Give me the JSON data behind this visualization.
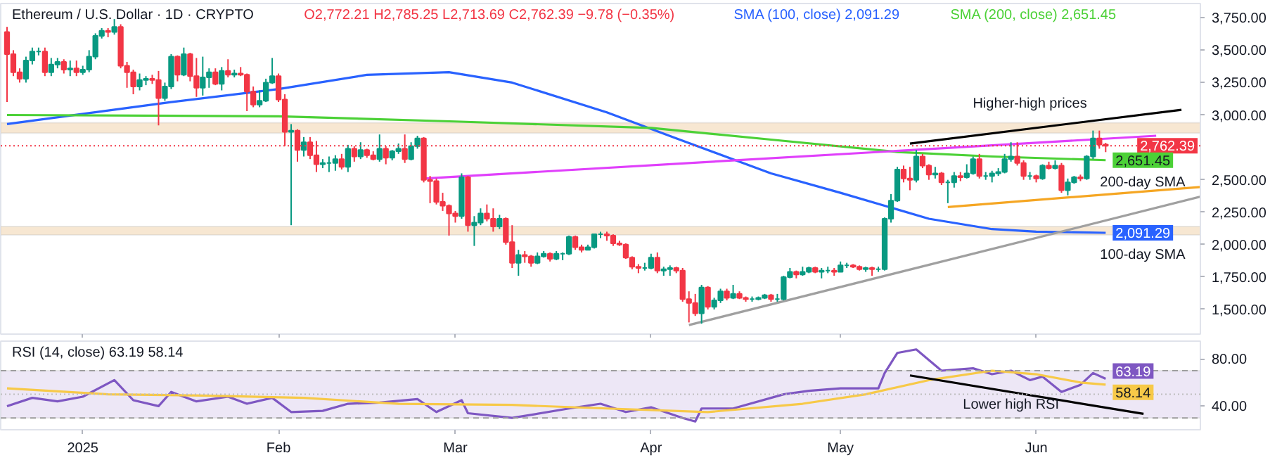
{
  "chart_data": [
    {
      "type": "candlestick",
      "title": "Ethereum / U.S. Dollar · 1D · CRYPTO",
      "subtitle": "O2,772.21 H2,785.25 L2,713.69 C2,762.39 −9.78 (−0.35%)",
      "x": [
        "2024-12-20",
        "2024-12-21",
        "2024-12-22",
        "2024-12-23",
        "2024-12-24",
        "2024-12-25",
        "2024-12-26",
        "2024-12-27",
        "2024-12-28",
        "2024-12-29",
        "2024-12-30",
        "2024-12-31",
        "2025-01-01",
        "2025-01-02",
        "2025-01-03",
        "2025-01-04",
        "2025-01-05",
        "2025-01-06",
        "2025-01-07",
        "2025-01-08",
        "2025-01-09",
        "2025-01-10",
        "2025-01-11",
        "2025-01-12",
        "2025-01-13",
        "2025-01-14",
        "2025-01-15",
        "2025-01-16",
        "2025-01-17",
        "2025-01-18",
        "2025-01-19",
        "2025-01-20",
        "2025-01-21",
        "2025-01-22",
        "2025-01-23",
        "2025-01-24",
        "2025-01-25",
        "2025-01-26",
        "2025-01-27",
        "2025-01-28",
        "2025-01-29",
        "2025-01-30",
        "2025-01-31",
        "2025-02-01",
        "2025-02-02",
        "2025-02-03",
        "2025-02-04",
        "2025-02-05",
        "2025-02-06",
        "2025-02-07",
        "2025-02-08",
        "2025-02-09",
        "2025-02-10",
        "2025-02-11",
        "2025-02-12",
        "2025-02-13",
        "2025-02-14",
        "2025-02-15",
        "2025-02-16",
        "2025-02-17",
        "2025-02-18",
        "2025-02-19",
        "2025-02-20",
        "2025-02-21",
        "2025-02-22",
        "2025-02-23",
        "2025-02-24",
        "2025-02-25",
        "2025-02-26",
        "2025-02-27",
        "2025-02-28",
        "2025-03-01",
        "2025-03-02",
        "2025-03-03",
        "2025-03-04",
        "2025-03-05",
        "2025-03-06",
        "2025-03-07",
        "2025-03-08",
        "2025-03-09",
        "2025-03-10",
        "2025-03-11",
        "2025-03-12",
        "2025-03-13",
        "2025-03-14",
        "2025-03-15",
        "2025-03-16",
        "2025-03-17",
        "2025-03-18",
        "2025-03-19",
        "2025-03-20",
        "2025-03-21",
        "2025-03-22",
        "2025-03-23",
        "2025-03-24",
        "2025-03-25",
        "2025-03-26",
        "2025-03-27",
        "2025-03-28",
        "2025-03-29",
        "2025-03-30",
        "2025-03-31",
        "2025-04-01",
        "2025-04-02",
        "2025-04-03",
        "2025-04-04",
        "2025-04-05",
        "2025-04-06",
        "2025-04-07",
        "2025-04-08",
        "2025-04-09",
        "2025-04-10",
        "2025-04-11",
        "2025-04-12",
        "2025-04-13",
        "2025-04-14",
        "2025-04-15",
        "2025-04-16",
        "2025-04-17",
        "2025-04-18",
        "2025-04-19",
        "2025-04-20",
        "2025-04-21",
        "2025-04-22",
        "2025-04-23",
        "2025-04-24",
        "2025-04-25",
        "2025-04-26",
        "2025-04-27",
        "2025-04-28",
        "2025-04-29",
        "2025-04-30",
        "2025-05-01",
        "2025-05-02",
        "2025-05-03",
        "2025-05-04",
        "2025-05-05",
        "2025-05-06",
        "2025-05-07",
        "2025-05-08",
        "2025-05-09",
        "2025-05-10",
        "2025-05-11",
        "2025-05-12",
        "2025-05-13",
        "2025-05-14",
        "2025-05-15",
        "2025-05-16",
        "2025-05-17",
        "2025-05-18",
        "2025-05-19",
        "2025-05-20",
        "2025-05-21",
        "2025-05-22",
        "2025-05-23",
        "2025-05-24",
        "2025-05-25",
        "2025-05-26",
        "2025-05-27",
        "2025-05-28",
        "2025-05-29",
        "2025-05-30",
        "2025-05-31",
        "2025-06-01",
        "2025-06-02",
        "2025-06-03",
        "2025-06-04",
        "2025-06-05",
        "2025-06-06",
        "2025-06-07",
        "2025-06-08",
        "2025-06-09",
        "2025-06-10",
        "2025-06-11",
        "2025-06-12"
      ],
      "ohlc": [
        [
          3640,
          3680,
          3100,
          3470
        ],
        [
          3470,
          3500,
          3300,
          3330
        ],
        [
          3330,
          3360,
          3250,
          3280
        ],
        [
          3280,
          3450,
          3250,
          3420
        ],
        [
          3420,
          3520,
          3390,
          3490
        ],
        [
          3490,
          3520,
          3460,
          3490
        ],
        [
          3490,
          3520,
          3300,
          3330
        ],
        [
          3330,
          3440,
          3300,
          3390
        ],
        [
          3390,
          3440,
          3360,
          3410
        ],
        [
          3410,
          3430,
          3320,
          3350
        ],
        [
          3350,
          3420,
          3300,
          3360
        ],
        [
          3360,
          3420,
          3300,
          3330
        ],
        [
          3330,
          3380,
          3310,
          3350
        ],
        [
          3350,
          3500,
          3330,
          3450
        ],
        [
          3450,
          3630,
          3430,
          3610
        ],
        [
          3610,
          3670,
          3590,
          3650
        ],
        [
          3650,
          3670,
          3600,
          3640
        ],
        [
          3640,
          3740,
          3620,
          3680
        ],
        [
          3680,
          3700,
          3360,
          3380
        ],
        [
          3380,
          3410,
          3210,
          3330
        ],
        [
          3330,
          3350,
          3160,
          3220
        ],
        [
          3220,
          3320,
          3190,
          3270
        ],
        [
          3270,
          3300,
          3230,
          3280
        ],
        [
          3280,
          3310,
          3240,
          3270
        ],
        [
          3270,
          3340,
          2920,
          3130
        ],
        [
          3130,
          3250,
          3110,
          3220
        ],
        [
          3220,
          3470,
          3200,
          3450
        ],
        [
          3450,
          3460,
          3260,
          3310
        ],
        [
          3310,
          3520,
          3300,
          3470
        ],
        [
          3470,
          3480,
          3260,
          3300
        ],
        [
          3300,
          3440,
          3140,
          3210
        ],
        [
          3210,
          3450,
          3150,
          3290
        ],
        [
          3290,
          3360,
          3210,
          3330
        ],
        [
          3330,
          3360,
          3230,
          3240
        ],
        [
          3240,
          3370,
          3190,
          3340
        ],
        [
          3340,
          3430,
          3290,
          3310
        ],
        [
          3310,
          3350,
          3290,
          3320
        ],
        [
          3320,
          3370,
          3300,
          3310
        ],
        [
          3310,
          3320,
          3030,
          3180
        ],
        [
          3180,
          3220,
          3060,
          3080
        ],
        [
          3080,
          3190,
          3060,
          3110
        ],
        [
          3110,
          3280,
          3100,
          3250
        ],
        [
          3250,
          3440,
          3240,
          3300
        ],
        [
          3300,
          3320,
          3100,
          3120
        ],
        [
          3120,
          3160,
          2760,
          2870
        ],
        [
          2870,
          2930,
          2150,
          2880
        ],
        [
          2880,
          2890,
          2640,
          2730
        ],
        [
          2730,
          2830,
          2680,
          2790
        ],
        [
          2790,
          2830,
          2660,
          2690
        ],
        [
          2690,
          2800,
          2560,
          2620
        ],
        [
          2620,
          2660,
          2590,
          2630
        ],
        [
          2630,
          2680,
          2560,
          2630
        ],
        [
          2630,
          2690,
          2570,
          2660
        ],
        [
          2660,
          2700,
          2580,
          2600
        ],
        [
          2600,
          2770,
          2560,
          2740
        ],
        [
          2740,
          2760,
          2640,
          2680
        ],
        [
          2680,
          2790,
          2660,
          2730
        ],
        [
          2730,
          2740,
          2670,
          2690
        ],
        [
          2690,
          2720,
          2650,
          2660
        ],
        [
          2660,
          2850,
          2640,
          2740
        ],
        [
          2740,
          2760,
          2620,
          2670
        ],
        [
          2670,
          2730,
          2650,
          2720
        ],
        [
          2720,
          2780,
          2700,
          2740
        ],
        [
          2740,
          2850,
          2630,
          2660
        ],
        [
          2660,
          2790,
          2650,
          2760
        ],
        [
          2760,
          2840,
          2740,
          2820
        ],
        [
          2820,
          2830,
          2480,
          2500
        ],
        [
          2500,
          2530,
          2320,
          2490
        ],
        [
          2490,
          2510,
          2310,
          2330
        ],
        [
          2330,
          2400,
          2260,
          2300
        ],
        [
          2300,
          2310,
          2070,
          2240
        ],
        [
          2240,
          2260,
          2170,
          2220
        ],
        [
          2220,
          2550,
          2200,
          2520
        ],
        [
          2520,
          2530,
          2100,
          2150
        ],
        [
          2150,
          2220,
          1990,
          2170
        ],
        [
          2170,
          2280,
          2150,
          2240
        ],
        [
          2240,
          2310,
          2180,
          2200
        ],
        [
          2200,
          2280,
          2100,
          2140
        ],
        [
          2140,
          2230,
          2120,
          2200
        ],
        [
          2200,
          2210,
          2000,
          2020
        ],
        [
          2020,
          2150,
          1820,
          1860
        ],
        [
          1860,
          1960,
          1760,
          1920
        ],
        [
          1920,
          1950,
          1860,
          1910
        ],
        [
          1910,
          1920,
          1830,
          1860
        ],
        [
          1860,
          1940,
          1850,
          1910
        ],
        [
          1910,
          1950,
          1900,
          1930
        ],
        [
          1930,
          1940,
          1870,
          1890
        ],
        [
          1890,
          1950,
          1880,
          1930
        ],
        [
          1930,
          1940,
          1880,
          1930
        ],
        [
          1930,
          2070,
          1920,
          2060
        ],
        [
          2060,
          2070,
          1960,
          1980
        ],
        [
          1980,
          2000,
          1940,
          1960
        ],
        [
          1960,
          2000,
          1960,
          1980
        ],
        [
          1980,
          2080,
          1970,
          2080
        ],
        [
          2080,
          2100,
          2050,
          2080
        ],
        [
          2080,
          2100,
          2030,
          2070
        ],
        [
          2070,
          2080,
          1990,
          2010
        ],
        [
          2010,
          2030,
          1990,
          2000
        ],
        [
          2000,
          2010,
          1890,
          1900
        ],
        [
          1900,
          1910,
          1810,
          1830
        ],
        [
          1830,
          1850,
          1780,
          1820
        ],
        [
          1820,
          1860,
          1800,
          1820
        ],
        [
          1820,
          1930,
          1810,
          1900
        ],
        [
          1900,
          1940,
          1780,
          1800
        ],
        [
          1800,
          1830,
          1760,
          1810
        ],
        [
          1810,
          1840,
          1760,
          1820
        ],
        [
          1820,
          1830,
          1780,
          1800
        ],
        [
          1800,
          1820,
          1560,
          1580
        ],
        [
          1580,
          1640,
          1400,
          1550
        ],
        [
          1550,
          1620,
          1450,
          1470
        ],
        [
          1470,
          1690,
          1390,
          1670
        ],
        [
          1670,
          1680,
          1500,
          1520
        ],
        [
          1520,
          1590,
          1500,
          1570
        ],
        [
          1570,
          1660,
          1550,
          1640
        ],
        [
          1640,
          1660,
          1570,
          1590
        ],
        [
          1590,
          1690,
          1580,
          1620
        ],
        [
          1620,
          1640,
          1580,
          1590
        ],
        [
          1590,
          1600,
          1560,
          1580
        ],
        [
          1580,
          1600,
          1560,
          1580
        ],
        [
          1580,
          1600,
          1570,
          1590
        ],
        [
          1590,
          1620,
          1580,
          1610
        ],
        [
          1610,
          1620,
          1560,
          1580
        ],
        [
          1580,
          1620,
          1560,
          1580
        ],
        [
          1580,
          1760,
          1570,
          1750
        ],
        [
          1750,
          1820,
          1740,
          1790
        ],
        [
          1790,
          1800,
          1740,
          1770
        ],
        [
          1770,
          1830,
          1760,
          1790
        ],
        [
          1790,
          1830,
          1780,
          1820
        ],
        [
          1820,
          1830,
          1780,
          1790
        ],
        [
          1790,
          1820,
          1740,
          1800
        ],
        [
          1800,
          1830,
          1780,
          1800
        ],
        [
          1800,
          1820,
          1760,
          1790
        ],
        [
          1790,
          1870,
          1790,
          1840
        ],
        [
          1840,
          1860,
          1820,
          1840
        ],
        [
          1840,
          1850,
          1820,
          1830
        ],
        [
          1830,
          1840,
          1800,
          1810
        ],
        [
          1810,
          1830,
          1790,
          1820
        ],
        [
          1820,
          1830,
          1760,
          1810
        ],
        [
          1810,
          1830,
          1790,
          1810
        ],
        [
          1810,
          2210,
          1800,
          2200
        ],
        [
          2200,
          2390,
          2170,
          2340
        ],
        [
          2340,
          2600,
          2330,
          2580
        ],
        [
          2580,
          2610,
          2480,
          2510
        ],
        [
          2510,
          2600,
          2420,
          2500
        ],
        [
          2500,
          2730,
          2480,
          2680
        ],
        [
          2680,
          2700,
          2590,
          2610
        ],
        [
          2610,
          2620,
          2500,
          2540
        ],
        [
          2540,
          2600,
          2510,
          2550
        ],
        [
          2550,
          2560,
          2460,
          2480
        ],
        [
          2480,
          2500,
          2320,
          2480
        ],
        [
          2480,
          2560,
          2440,
          2530
        ],
        [
          2530,
          2560,
          2490,
          2520
        ],
        [
          2520,
          2620,
          2510,
          2550
        ],
        [
          2550,
          2680,
          2540,
          2660
        ],
        [
          2660,
          2700,
          2510,
          2530
        ],
        [
          2530,
          2560,
          2500,
          2530
        ],
        [
          2530,
          2570,
          2480,
          2550
        ],
        [
          2550,
          2590,
          2530,
          2560
        ],
        [
          2560,
          2700,
          2550,
          2660
        ],
        [
          2660,
          2790,
          2640,
          2680
        ],
        [
          2680,
          2790,
          2610,
          2630
        ],
        [
          2630,
          2650,
          2500,
          2530
        ],
        [
          2530,
          2560,
          2500,
          2530
        ],
        [
          2530,
          2540,
          2480,
          2510
        ],
        [
          2510,
          2620,
          2500,
          2610
        ],
        [
          2610,
          2640,
          2580,
          2590
        ],
        [
          2590,
          2650,
          2580,
          2610
        ],
        [
          2610,
          2630,
          2400,
          2420
        ],
        [
          2420,
          2510,
          2380,
          2480
        ],
        [
          2480,
          2530,
          2470,
          2520
        ],
        [
          2520,
          2540,
          2490,
          2510
        ],
        [
          2510,
          2690,
          2500,
          2680
        ],
        [
          2680,
          2880,
          2660,
          2820
        ],
        [
          2820,
          2880,
          2740,
          2772.21
        ],
        [
          2772.21,
          2785.25,
          2713.69,
          2762.39
        ]
      ],
      "series": [
        {
          "type": "line",
          "name": "SMA (100, close) 2,091.29",
          "color": "#2962ff",
          "x": [
            "2024-12-20",
            "2025-01-15",
            "2025-02-01",
            "2025-02-15",
            "2025-02-28",
            "2025-03-10",
            "2025-03-25",
            "2025-04-05",
            "2025-04-20",
            "2025-05-01",
            "2025-05-15",
            "2025-05-25",
            "2025-06-01",
            "2025-06-12"
          ],
          "values": [
            2930,
            3100,
            3200,
            3310,
            3330,
            3250,
            3020,
            2820,
            2550,
            2400,
            2200,
            2120,
            2100,
            2091.29
          ],
          "value_labels": [
            null,
            null,
            null,
            null,
            null,
            null,
            null,
            null,
            null,
            null,
            null,
            null,
            null,
            "2,091.29"
          ]
        },
        {
          "type": "line",
          "name": "SMA (200, close) 2,651.45",
          "color": "#4cd137",
          "x": [
            "2024-12-20",
            "2025-02-01",
            "2025-03-01",
            "2025-04-01",
            "2025-04-20",
            "2025-05-10",
            "2025-05-25",
            "2025-06-12"
          ],
          "values": [
            3000,
            2990,
            2950,
            2900,
            2810,
            2715,
            2680,
            2651.45
          ],
          "value_labels": [
            null,
            null,
            null,
            null,
            null,
            null,
            null,
            "2,651.45"
          ]
        },
        {
          "type": "line",
          "color": "#e040fb",
          "x": [
            "2025-02-24",
            "2025-06-20"
          ],
          "values": [
            2510,
            2840
          ]
        },
        {
          "type": "line",
          "color": "#f5a623",
          "x": [
            "2025-05-18",
            "2025-06-27"
          ],
          "values": [
            2290,
            2445
          ]
        },
        {
          "type": "line",
          "color": "#a0a0a0",
          "x": [
            "2025-04-07",
            "2025-06-27"
          ],
          "values": [
            1380,
            2370
          ]
        },
        {
          "type": "line",
          "color": "#000000",
          "x": [
            "2025-05-12",
            "2025-06-24"
          ],
          "values": [
            2780,
            3040
          ]
        }
      ],
      "bands": [
        {
          "axis": "y",
          "from": 2860,
          "to": 2940,
          "color": "#f7e7d2"
        },
        {
          "axis": "y",
          "from": 2075,
          "to": 2140,
          "color": "#f7e7d2"
        }
      ],
      "ref_lines": [
        {
          "axis": "y",
          "value": 2762.39,
          "label": "2,762.39",
          "color": "#f23645",
          "line_style": "dotted"
        }
      ],
      "annotations": [
        {
          "text": "Higher-high prices",
          "x": "2025-05-31",
          "y": 2895
        },
        {
          "text": "200-day SMA",
          "x": "2025-06-12",
          "y": 2651.45
        },
        {
          "text": "100-day SMA",
          "x": "2025-06-12",
          "y": 2091.29
        }
      ],
      "xlim": [
        "2024-12-19",
        "2025-06-27"
      ],
      "ylim": [
        1310,
        3860
      ],
      "xticks": [
        {
          "value": "2025-01-01",
          "label": null
        },
        {
          "value": "2025-02-01",
          "label": null
        },
        {
          "value": "2025-03-01",
          "label": null
        },
        {
          "value": "2025-04-01",
          "label": null
        },
        {
          "value": "2025-05-01",
          "label": null
        },
        {
          "value": "2025-06-01",
          "label": null
        }
      ],
      "yticks": [
        {
          "value": 1500,
          "label": "1,500.00"
        },
        {
          "value": 1750,
          "label": "1,750.00"
        },
        {
          "value": 2000,
          "label": "2,000.00"
        },
        {
          "value": 2250,
          "label": "2,250.00"
        },
        {
          "value": 2500,
          "label": "2,500.00"
        },
        {
          "value": 3000,
          "label": "3,000.00"
        },
        {
          "value": 3250,
          "label": "3,250.00"
        },
        {
          "value": 3500,
          "label": "3,500.00"
        },
        {
          "value": 3750,
          "label": "3,750.00"
        }
      ],
      "tick_labels": "y",
      "legend": "top"
    },
    {
      "type": "line",
      "title": "RSI (14, close) 63.19 58.14",
      "series": [
        {
          "color": "#7e57c2",
          "x": [
            "2024-12-20",
            "2024-12-24",
            "2024-12-28",
            "2025-01-01",
            "2025-01-06",
            "2025-01-09",
            "2025-01-13",
            "2025-01-15",
            "2025-01-19",
            "2025-01-24",
            "2025-01-27",
            "2025-01-31",
            "2025-02-03",
            "2025-02-08",
            "2025-02-12",
            "2025-02-17",
            "2025-02-23",
            "2025-02-26",
            "2025-03-02",
            "2025-03-03",
            "2025-03-10",
            "2025-03-19",
            "2025-03-24",
            "2025-03-28",
            "2025-04-01",
            "2025-04-06",
            "2025-04-08",
            "2025-04-09",
            "2025-04-14",
            "2025-04-22",
            "2025-04-26",
            "2025-05-01",
            "2025-05-07",
            "2025-05-08",
            "2025-05-10",
            "2025-05-13",
            "2025-05-17",
            "2025-05-22",
            "2025-05-25",
            "2025-05-28",
            "2025-05-31",
            "2025-06-02",
            "2025-06-05",
            "2025-06-08",
            "2025-06-10",
            "2025-06-12"
          ],
          "values": [
            40,
            47,
            44,
            48,
            62,
            45,
            40,
            52,
            44,
            48,
            42,
            47,
            35,
            36,
            42,
            43,
            46,
            35,
            45,
            34,
            30,
            38,
            42,
            35,
            39,
            30,
            27,
            38,
            38,
            50,
            53,
            55,
            55,
            68,
            85,
            88,
            70,
            72,
            67,
            70,
            62,
            65,
            52,
            58,
            68,
            63.19
          ],
          "value_labels": [
            null,
            null,
            null,
            null,
            null,
            null,
            null,
            null,
            null,
            null,
            null,
            null,
            null,
            null,
            null,
            null,
            null,
            null,
            null,
            null,
            null,
            null,
            null,
            null,
            null,
            null,
            null,
            null,
            null,
            null,
            null,
            null,
            null,
            null,
            null,
            null,
            null,
            null,
            null,
            null,
            null,
            null,
            null,
            null,
            null,
            "63.19"
          ]
        },
        {
          "color": "#f7c948",
          "x": [
            "2024-12-20",
            "2025-01-05",
            "2025-01-20",
            "2025-02-05",
            "2025-02-20",
            "2025-03-10",
            "2025-03-25",
            "2025-04-10",
            "2025-04-25",
            "2025-05-05",
            "2025-05-15",
            "2025-05-25",
            "2025-06-01",
            "2025-06-08",
            "2025-06-12"
          ],
          "values": [
            55,
            50,
            49,
            47,
            42,
            41,
            38,
            35,
            42,
            50,
            62,
            70,
            67,
            60,
            58.14
          ],
          "value_labels": [
            null,
            null,
            null,
            null,
            null,
            null,
            null,
            null,
            null,
            null,
            null,
            null,
            null,
            null,
            "58.14"
          ]
        },
        {
          "color": "#000000",
          "x": [
            "2025-05-12",
            "2025-06-18"
          ],
          "values": [
            66,
            33.5
          ]
        }
      ],
      "bands": [
        {
          "axis": "y",
          "from": 30,
          "to": 70,
          "color": "#ede7f6"
        }
      ],
      "ref_lines": [
        {
          "axis": "y",
          "value": 70,
          "color": "#9e9e9e",
          "line_style": "dashed"
        },
        {
          "axis": "y",
          "value": 50,
          "color": "#bdbdbd",
          "line_style": "dotted"
        },
        {
          "axis": "y",
          "value": 30,
          "color": "#9e9e9e",
          "line_style": "dashed"
        }
      ],
      "annotations": [
        {
          "text": "Lower high RSI",
          "x": "2025-05-28",
          "y": 52
        }
      ],
      "xlim": [
        "2024-12-19",
        "2025-06-27"
      ],
      "ylim": [
        20,
        95
      ],
      "xticks": [
        {
          "value": "2025-01-01",
          "label": "2025"
        },
        {
          "value": "2025-02-01",
          "label": "Feb"
        },
        {
          "value": "2025-03-01",
          "label": "Mar"
        },
        {
          "value": "2025-04-01",
          "label": "Apr"
        },
        {
          "value": "2025-05-01",
          "label": "May"
        },
        {
          "value": "2025-06-01",
          "label": "Jun"
        }
      ],
      "yticks": [
        {
          "value": 40,
          "label": "40.00"
        },
        {
          "value": 80,
          "label": "80.00"
        }
      ]
    }
  ]
}
